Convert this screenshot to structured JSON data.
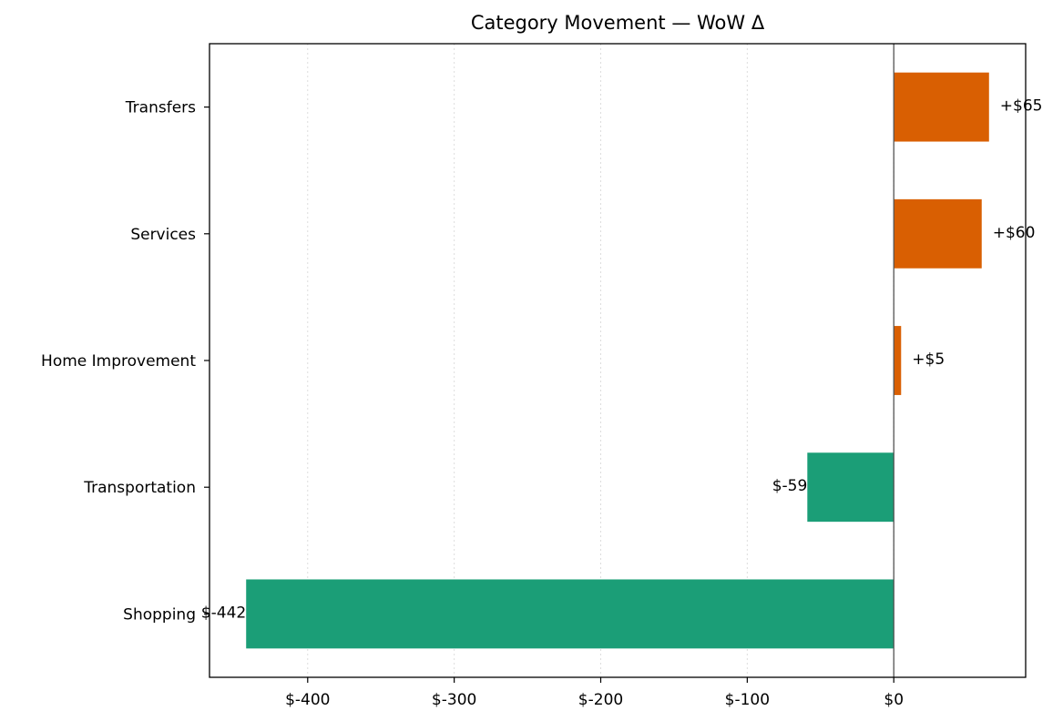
{
  "chart_data": {
    "type": "bar",
    "orientation": "horizontal",
    "title": "Category Movement — WoW Δ",
    "xlabel": "",
    "ylabel": "",
    "categories": [
      "Transfers",
      "Services",
      "Home Improvement",
      "Transportation",
      "Shopping"
    ],
    "values": [
      65,
      60,
      5,
      -59,
      -442
    ],
    "value_labels": [
      "+$65",
      "+$60",
      "+$5",
      "$-59",
      "$-442"
    ],
    "xlim": [
      -467,
      90
    ],
    "xticks": [
      -400,
      -300,
      -200,
      -100,
      0
    ],
    "xtick_labels": [
      "$-400",
      "$-300",
      "$-200",
      "$-100",
      "$0"
    ],
    "grid": "x dotted",
    "colors": {
      "positive": "#d95f02",
      "negative": "#1b9e77",
      "zero_line": "#555555",
      "grid": "#dddddd"
    }
  }
}
